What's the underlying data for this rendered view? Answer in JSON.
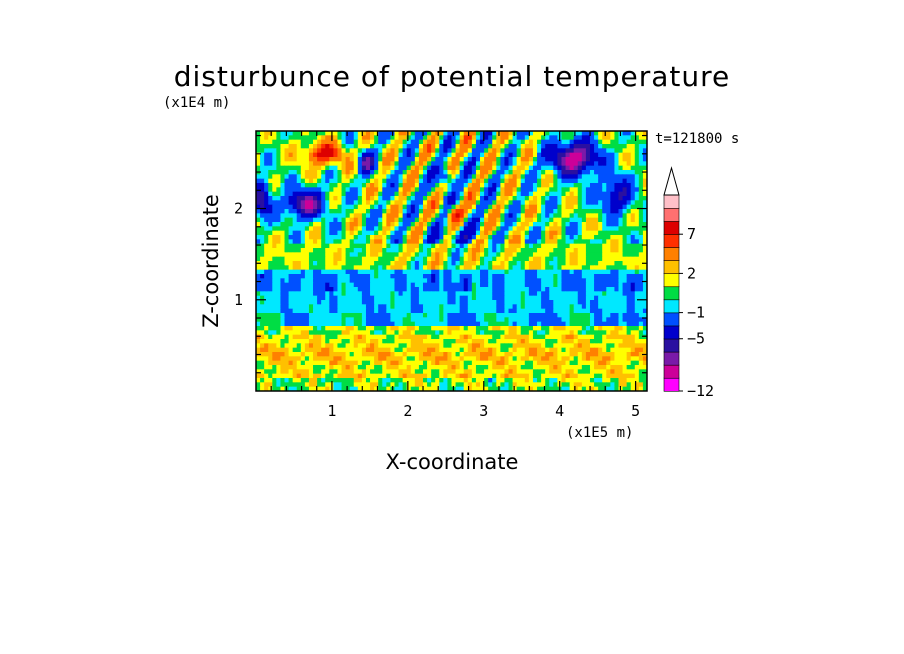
{
  "chart_data": {
    "type": "heatmap",
    "title": "disturbunce of potential temperature",
    "time_label": "t=121800 s",
    "xlabel": "X-coordinate",
    "ylabel": "Z-coordinate",
    "x_unit": "(x1E5 m)",
    "y_unit": "(x1E4 m)",
    "xlim": [
      0,
      5.15
    ],
    "ylim": [
      0,
      2.85
    ],
    "x_ticks": [
      "1",
      "2",
      "3",
      "4",
      "5"
    ],
    "y_ticks": [
      "1",
      "2"
    ],
    "colorbar": {
      "labels": [
        "7",
        "2",
        "-1",
        "-5",
        "-12"
      ],
      "extend": "max",
      "colors": [
        "#ff00ff",
        "#cc0099",
        "#7a1aa8",
        "#2a10a0",
        "#0000cc",
        "#0050ff",
        "#00e8ff",
        "#00dd44",
        "#ffff00",
        "#ffc000",
        "#ff8000",
        "#ff3000",
        "#dd0000",
        "#ff7070",
        "#ffc0c8"
      ],
      "level_values": [
        -12,
        -11,
        -9,
        -7,
        -5,
        -3,
        -1,
        0,
        1,
        2,
        3,
        5,
        7,
        9,
        11
      ]
    },
    "grid": false
  }
}
